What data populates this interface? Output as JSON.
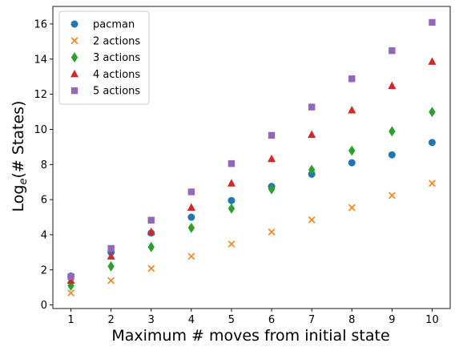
{
  "chart_data": {
    "type": "scatter",
    "title": "",
    "xlabel": "Maximum # moves from initial state",
    "ylabel_main": "Log",
    "ylabel_sub": "e",
    "ylabel_rest": "(# States)",
    "x": [
      1,
      2,
      3,
      4,
      5,
      6,
      7,
      8,
      9,
      10
    ],
    "xticks": [
      "1",
      "2",
      "3",
      "4",
      "5",
      "6",
      "7",
      "8",
      "9",
      "10"
    ],
    "yticks": [
      "0",
      "2",
      "4",
      "6",
      "8",
      "10",
      "12",
      "14",
      "16"
    ],
    "xlim": [
      0.55,
      10.45
    ],
    "ylim": [
      -0.2,
      17.0
    ],
    "grid": false,
    "legend_position": "top-left",
    "series": [
      {
        "name": "pacman",
        "marker": "circle",
        "color": "#1f77b4",
        "values": [
          1.65,
          3.0,
          4.1,
          5.0,
          5.95,
          6.75,
          7.45,
          8.1,
          8.55,
          9.25
        ]
      },
      {
        "name": "2 actions",
        "marker": "x",
        "color": "#ff7f0e",
        "values": [
          0.69,
          1.39,
          2.08,
          2.77,
          3.47,
          4.16,
          4.85,
          5.55,
          6.24,
          6.93
        ]
      },
      {
        "name": "3 actions",
        "marker": "diamond",
        "color": "#2ca02c",
        "values": [
          1.1,
          2.2,
          3.3,
          4.39,
          5.49,
          6.59,
          7.69,
          8.79,
          9.89,
          10.99
        ]
      },
      {
        "name": "4 actions",
        "marker": "triangle",
        "color": "#d62728",
        "values": [
          1.39,
          2.77,
          4.16,
          5.55,
          6.93,
          8.32,
          9.7,
          11.09,
          12.48,
          13.86
        ]
      },
      {
        "name": "5 actions",
        "marker": "square",
        "color": "#9467bd",
        "values": [
          1.61,
          3.22,
          4.83,
          6.44,
          8.05,
          9.66,
          11.27,
          12.88,
          14.48,
          16.09
        ]
      }
    ]
  }
}
